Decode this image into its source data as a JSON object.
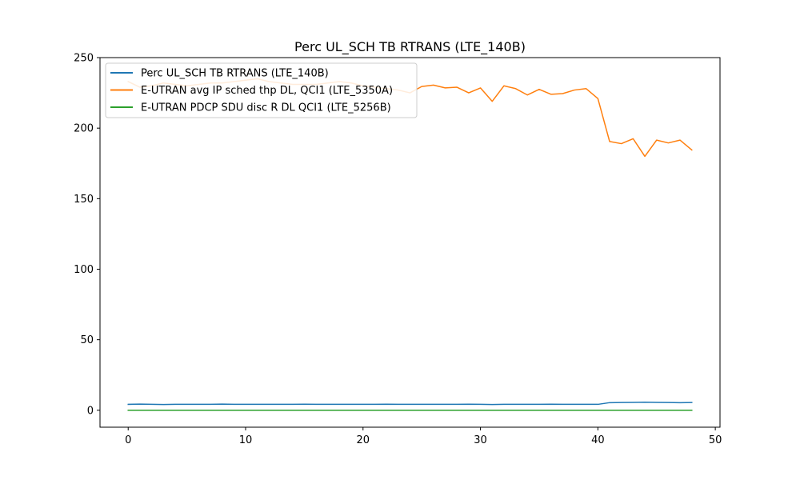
{
  "chart_data": {
    "type": "line",
    "title": "Perc UL_SCH TB RTRANS (LTE_140B)",
    "xlabel": "",
    "ylabel": "",
    "xlim": [
      -2.4,
      50.4
    ],
    "ylim": [
      -12,
      250
    ],
    "xticks": [
      0,
      10,
      20,
      30,
      40,
      50
    ],
    "yticks": [
      0,
      50,
      100,
      150,
      200,
      250
    ],
    "grid": false,
    "legend_position": "top-left",
    "x": [
      0,
      1,
      2,
      3,
      4,
      5,
      6,
      7,
      8,
      9,
      10,
      11,
      12,
      13,
      14,
      15,
      16,
      17,
      18,
      19,
      20,
      21,
      22,
      23,
      24,
      25,
      26,
      27,
      28,
      29,
      30,
      31,
      32,
      33,
      34,
      35,
      36,
      37,
      38,
      39,
      40,
      41,
      42,
      43,
      44,
      45,
      46,
      47,
      48
    ],
    "series": [
      {
        "name": "Perc UL_SCH TB RTRANS (LTE_140B)",
        "color": "#1f77b4",
        "values": [
          4.2,
          4.4,
          4.2,
          4.1,
          4.2,
          4.2,
          4.2,
          4.2,
          4.4,
          4.2,
          4.2,
          4.2,
          4.2,
          4.2,
          4.2,
          4.3,
          4.2,
          4.2,
          4.2,
          4.2,
          4.2,
          4.2,
          4.3,
          4.2,
          4.2,
          4.2,
          4.2,
          4.2,
          4.2,
          4.3,
          4.2,
          4.1,
          4.2,
          4.2,
          4.2,
          4.2,
          4.3,
          4.2,
          4.2,
          4.2,
          4.2,
          5.4,
          5.5,
          5.6,
          5.7,
          5.6,
          5.5,
          5.4,
          5.5
        ]
      },
      {
        "name": "E-UTRAN avg IP sched thp DL, QCI1 (LTE_5350A)",
        "color": "#ff7f0e",
        "values": [
          233,
          229,
          230,
          232,
          231,
          230,
          231,
          232,
          232,
          233,
          234,
          235,
          233,
          232,
          231,
          231,
          231,
          232,
          233,
          232,
          230,
          229,
          228,
          227,
          225,
          229.5,
          230.5,
          228.5,
          229,
          225,
          228.5,
          219,
          230,
          228,
          223.5,
          227.5,
          224,
          224.5,
          227,
          228,
          221,
          190.5,
          189,
          192.5,
          180,
          191.5,
          189.5,
          191.5,
          184.5
        ]
      },
      {
        "name": "E-UTRAN PDCP SDU disc R DL QCI1 (LTE_5256B)",
        "color": "#2ca02c",
        "values": [
          0,
          0,
          0,
          0,
          0,
          0,
          0,
          0,
          0,
          0,
          0,
          0,
          0,
          0,
          0,
          0,
          0,
          0,
          0,
          0,
          0,
          0,
          0,
          0,
          0,
          0,
          0,
          0,
          0,
          0,
          0,
          0,
          0,
          0,
          0,
          0,
          0,
          0,
          0,
          0,
          0,
          0,
          0,
          0,
          0,
          0,
          0,
          0,
          0
        ]
      }
    ]
  }
}
